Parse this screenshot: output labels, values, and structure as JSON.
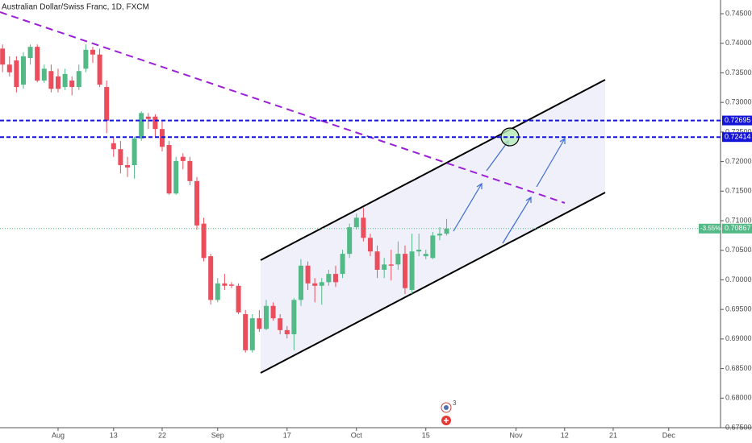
{
  "chart_data": {
    "type": "candlestick",
    "title": "Australian Dollar/Swiss Franc, 1D, FXCM",
    "up_color": "#53b987",
    "down_color": "#eb4d5c",
    "start_index": -8,
    "open": [
      0.7391,
      0.7364,
      0.7371,
      0.733,
      0.7375,
      0.7394,
      0.7337,
      0.7353,
      0.7344,
      0.7326,
      0.7337,
      0.7326,
      0.7357,
      0.7389,
      0.7381,
      0.7326,
      0.7231,
      0.7221,
      0.7194,
      0.7194,
      0.7239,
      0.7276,
      0.7276,
      0.7255,
      0.7228,
      0.7146,
      0.7208,
      0.7201,
      0.7167,
      0.7095,
      0.704,
      0.6966,
      0.6994,
      0.6992,
      0.699,
      0.6942,
      0.6881,
      0.6935,
      0.6917,
      0.6956,
      0.6935,
      0.6915,
      0.6908,
      0.6966,
      0.7024,
      0.6994,
      0.699,
      0.6996,
      0.701,
      0.701,
      0.7044,
      0.7089,
      0.7105,
      0.7071,
      0.7048,
      0.7017,
      0.7026,
      0.7026,
      0.7044,
      0.6983,
      0.7048,
      0.704,
      0.7037,
      0.7075,
      0.7078
    ],
    "high": [
      0.7398,
      0.7378,
      0.7378,
      0.7385,
      0.7398,
      0.7398,
      0.7364,
      0.7364,
      0.7357,
      0.7357,
      0.7344,
      0.7364,
      0.7398,
      0.7394,
      0.7391,
      0.7337,
      0.7242,
      0.7235,
      0.7208,
      0.7242,
      0.7285,
      0.7282,
      0.728,
      0.7269,
      0.7235,
      0.7208,
      0.7214,
      0.7208,
      0.7174,
      0.7105,
      0.7044,
      0.7003,
      0.701,
      0.6996,
      0.6994,
      0.6949,
      0.6942,
      0.6949,
      0.6966,
      0.6962,
      0.6942,
      0.6922,
      0.6969,
      0.7035,
      0.7031,
      0.7003,
      0.7003,
      0.7017,
      0.7024,
      0.7051,
      0.7095,
      0.7112,
      0.7122,
      0.7078,
      0.7058,
      0.7037,
      0.7051,
      0.7065,
      0.7058,
      0.7078,
      0.7078,
      0.7051,
      0.7081,
      0.7089,
      0.7103
    ],
    "low": [
      0.7351,
      0.7344,
      0.7317,
      0.7323,
      0.7364,
      0.7334,
      0.7333,
      0.7317,
      0.7317,
      0.7321,
      0.7312,
      0.7321,
      0.7351,
      0.7367,
      0.7326,
      0.7248,
      0.7208,
      0.718,
      0.7174,
      0.7171,
      0.7235,
      0.7255,
      0.7242,
      0.7217,
      0.7144,
      0.7144,
      0.7187,
      0.716,
      0.7085,
      0.7031,
      0.6958,
      0.6962,
      0.6983,
      0.6986,
      0.6942,
      0.6877,
      0.6877,
      0.6912,
      0.6915,
      0.6931,
      0.6908,
      0.6901,
      0.6881,
      0.6956,
      0.6983,
      0.6962,
      0.6958,
      0.699,
      0.6988,
      0.7003,
      0.7037,
      0.7085,
      0.7065,
      0.704,
      0.7003,
      0.7003,
      0.6999,
      0.7017,
      0.6976,
      0.6976,
      0.704,
      0.7035,
      0.7035,
      0.7067,
      0.7075
    ],
    "close": [
      0.7364,
      0.7351,
      0.7326,
      0.7378,
      0.7394,
      0.7337,
      0.7357,
      0.7323,
      0.7323,
      0.7348,
      0.7326,
      0.7353,
      0.7389,
      0.7381,
      0.733,
      0.7269,
      0.7221,
      0.7194,
      0.719,
      0.7239,
      0.7282,
      0.7272,
      0.7255,
      0.7225,
      0.7146,
      0.7201,
      0.7201,
      0.7167,
      0.7092,
      0.7037,
      0.6966,
      0.6994,
      0.699,
      0.699,
      0.6945,
      0.6881,
      0.6935,
      0.6917,
      0.6956,
      0.6935,
      0.6915,
      0.6908,
      0.6966,
      0.7024,
      0.6994,
      0.699,
      0.6996,
      0.701,
      0.6996,
      0.7044,
      0.7089,
      0.7105,
      0.7071,
      0.7048,
      0.7017,
      0.7026,
      0.7024,
      0.7044,
      0.6986,
      0.7048,
      0.7051,
      0.7044,
      0.7075,
      0.7078,
      0.70867
    ],
    "xlim": [
      -8.37,
      95.47
    ],
    "xticks": [
      {
        "value": 0,
        "label": "Aug"
      },
      {
        "value": 8,
        "label": "13"
      },
      {
        "value": 15,
        "label": "22"
      },
      {
        "value": 23,
        "label": "Sep"
      },
      {
        "value": 33,
        "label": "17"
      },
      {
        "value": 43,
        "label": "Oct"
      },
      {
        "value": 53,
        "label": "15"
      },
      {
        "value": 66,
        "label": "Nov"
      },
      {
        "value": 73,
        "label": "12"
      },
      {
        "value": 80,
        "label": "21"
      },
      {
        "value": 88,
        "label": "Dec"
      }
    ],
    "ylim": [
      0.675,
      0.74732
    ],
    "yticks": [
      {
        "value": 0.745,
        "label": "0.74500"
      },
      {
        "value": 0.74,
        "label": "0.74000"
      },
      {
        "value": 0.735,
        "label": "0.73500"
      },
      {
        "value": 0.73,
        "label": "0.73000"
      },
      {
        "value": 0.725,
        "label": "0.72500"
      },
      {
        "value": 0.72,
        "label": "0.72000"
      },
      {
        "value": 0.715,
        "label": "0.71500"
      },
      {
        "value": 0.71,
        "label": "0.71000"
      },
      {
        "value": 0.705,
        "label": "0.70500"
      },
      {
        "value": 0.7,
        "label": "0.70000"
      },
      {
        "value": 0.695,
        "label": "0.69500"
      },
      {
        "value": 0.69,
        "label": "0.69000"
      },
      {
        "value": 0.685,
        "label": "0.68500"
      },
      {
        "value": 0.68,
        "label": "0.68000"
      },
      {
        "value": 0.675,
        "label": "0.67500"
      }
    ],
    "levels": [
      0.72695,
      0.72414
    ],
    "level_color": "#1414d8",
    "last_price": 0.70867,
    "last_change": "-3.55%",
    "event_count": "3"
  }
}
